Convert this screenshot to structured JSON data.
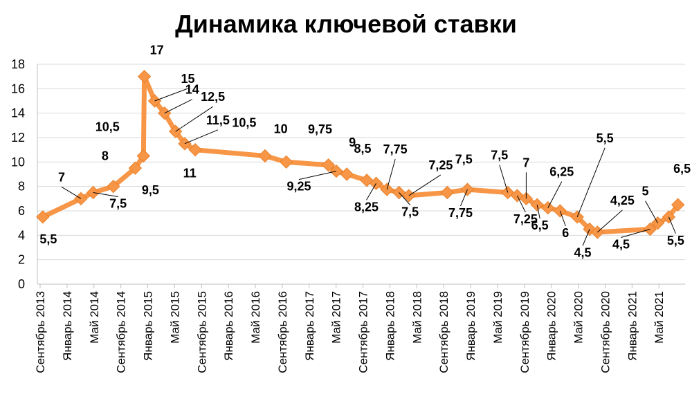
{
  "chart_data": {
    "type": "line",
    "title": "Динамика ключевой ставки",
    "xlabel": "",
    "ylabel": "",
    "ylim": [
      0,
      18
    ],
    "y_ticks": [
      0,
      2,
      4,
      6,
      8,
      10,
      12,
      14,
      16,
      18
    ],
    "grid": "horizontal",
    "legend": "none",
    "color": "#F79646",
    "x_ticks": [
      "Сентябрь 2013",
      "Январь 2014",
      "Май 2014",
      "Сентябрь 2014",
      "Январь 2015",
      "Май 2015",
      "Сентябрь 2015",
      "Январь 2016",
      "Май 2016",
      "Сентябрь 2016",
      "Январь 2017",
      "Май 2017",
      "Сентябрь 2017",
      "Январь 2018",
      "Май 2018",
      "Сентябрь 2018",
      "Январь 2019",
      "Май 2019",
      "Сентябрь 2019",
      "Январь 2020",
      "Май 2020",
      "Сентябрь 2020",
      "Январь 2021",
      "Май 2021"
    ],
    "series": [
      {
        "points": [
          {
            "x": "2013-09-13",
            "y": 5.5,
            "label": "5,5"
          },
          {
            "x": "2014-03-03",
            "y": 7,
            "label": "7"
          },
          {
            "x": "2014-04-28",
            "y": 7.5,
            "label": "7,5"
          },
          {
            "x": "2014-07-28",
            "y": 8,
            "label": "8"
          },
          {
            "x": "2014-11-05",
            "y": 9.5,
            "label": "9,5"
          },
          {
            "x": "2014-12-12",
            "y": 10.5,
            "label": "10,5"
          },
          {
            "x": "2014-12-16",
            "y": 17,
            "label": "17"
          },
          {
            "x": "2015-02-02",
            "y": 15,
            "label": "15"
          },
          {
            "x": "2015-03-16",
            "y": 14,
            "label": "14"
          },
          {
            "x": "2015-05-05",
            "y": 12.5,
            "label": "12,5"
          },
          {
            "x": "2015-06-16",
            "y": 11.5,
            "label": "11,5"
          },
          {
            "x": "2015-08-03",
            "y": 11,
            "label": "11"
          },
          {
            "x": "2016-06-14",
            "y": 10.5,
            "label": "10,5"
          },
          {
            "x": "2016-09-19",
            "y": 10,
            "label": "10"
          },
          {
            "x": "2017-03-27",
            "y": 9.75,
            "label": "9,75"
          },
          {
            "x": "2017-05-02",
            "y": 9.25,
            "label": "9,25"
          },
          {
            "x": "2017-06-19",
            "y": 9,
            "label": "9"
          },
          {
            "x": "2017-09-18",
            "y": 8.5,
            "label": "8,5"
          },
          {
            "x": "2017-10-30",
            "y": 8.25,
            "label": "8,25"
          },
          {
            "x": "2017-12-18",
            "y": 7.75,
            "label": "7,75"
          },
          {
            "x": "2018-02-12",
            "y": 7.5,
            "label": "7,5"
          },
          {
            "x": "2018-03-26",
            "y": 7.25,
            "label": "7,25"
          },
          {
            "x": "2018-09-17",
            "y": 7.5,
            "label": "7,5"
          },
          {
            "x": "2018-12-17",
            "y": 7.75,
            "label": "7,75"
          },
          {
            "x": "2019-06-17",
            "y": 7.5,
            "label": "7,5"
          },
          {
            "x": "2019-07-29",
            "y": 7.25,
            "label": "7,25"
          },
          {
            "x": "2019-09-09",
            "y": 7,
            "label": "7"
          },
          {
            "x": "2019-10-28",
            "y": 6.5,
            "label": "6,5"
          },
          {
            "x": "2019-12-16",
            "y": 6.25,
            "label": "6,25"
          },
          {
            "x": "2020-02-10",
            "y": 6,
            "label": "6"
          },
          {
            "x": "2020-04-27",
            "y": 5.5,
            "label": "5,5"
          },
          {
            "x": "2020-06-22",
            "y": 4.5,
            "label": "4,5"
          },
          {
            "x": "2020-07-27",
            "y": 4.25,
            "label": "4,25"
          },
          {
            "x": "2021-03-22",
            "y": 4.5,
            "label": "4,5"
          },
          {
            "x": "2021-04-26",
            "y": 5,
            "label": "5"
          },
          {
            "x": "2021-06-15",
            "y": 5.5,
            "label": "5,5"
          },
          {
            "x": "2021-07-26",
            "y": 6.5,
            "label": "6,5"
          }
        ]
      }
    ]
  }
}
